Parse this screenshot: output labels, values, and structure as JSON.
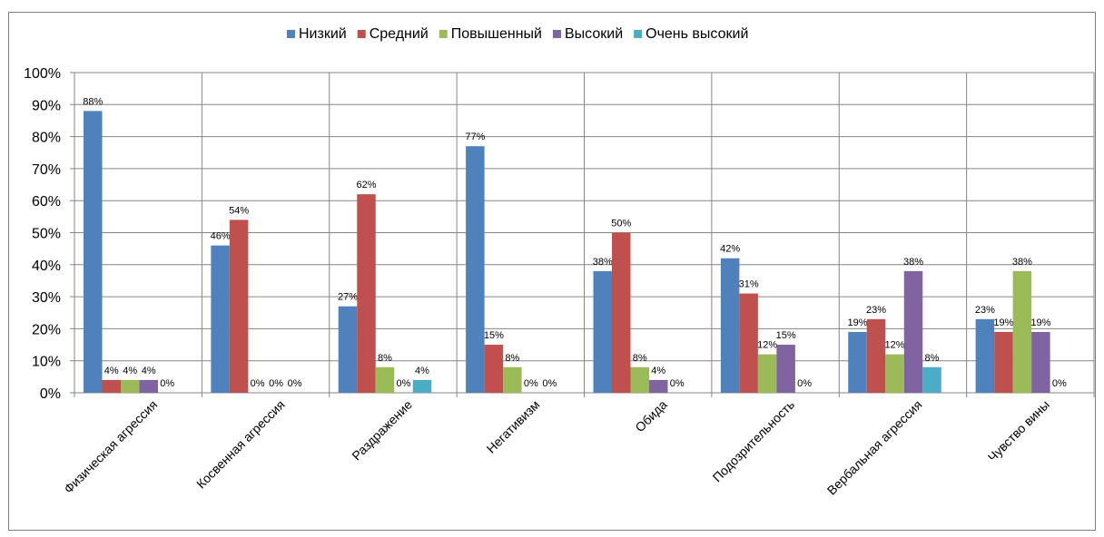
{
  "chart_data": {
    "type": "bar",
    "categories": [
      "Физическая агрессия",
      "Косвенная агрессия",
      "Раздражение",
      "Негативизм",
      "Обида",
      "Подозрительность",
      "Вербальная агрессия",
      "Чувство вины"
    ],
    "series": [
      {
        "name": "Низкий",
        "color": "#4f81bd",
        "values": [
          88,
          46,
          27,
          77,
          38,
          42,
          19,
          23
        ]
      },
      {
        "name": "Средний",
        "color": "#c0504d",
        "values": [
          4,
          54,
          62,
          15,
          50,
          31,
          23,
          19
        ]
      },
      {
        "name": "Повышенный",
        "color": "#9bbb59",
        "values": [
          4,
          0,
          8,
          8,
          8,
          12,
          12,
          38
        ]
      },
      {
        "name": "Высокий",
        "color": "#8064a2",
        "values": [
          4,
          0,
          0,
          0,
          4,
          15,
          38,
          19
        ]
      },
      {
        "name": "Очень высокий",
        "color": "#4bacc6",
        "values": [
          0,
          0,
          4,
          0,
          0,
          0,
          8,
          0
        ]
      }
    ],
    "value_format": "percent",
    "yticks": [
      "0%",
      "10%",
      "20%",
      "30%",
      "40%",
      "50%",
      "60%",
      "70%",
      "80%",
      "90%",
      "100%"
    ],
    "ylim": [
      0,
      100
    ],
    "grid": true,
    "legend_position": "top",
    "title": "",
    "xlabel": "",
    "ylabel": ""
  }
}
